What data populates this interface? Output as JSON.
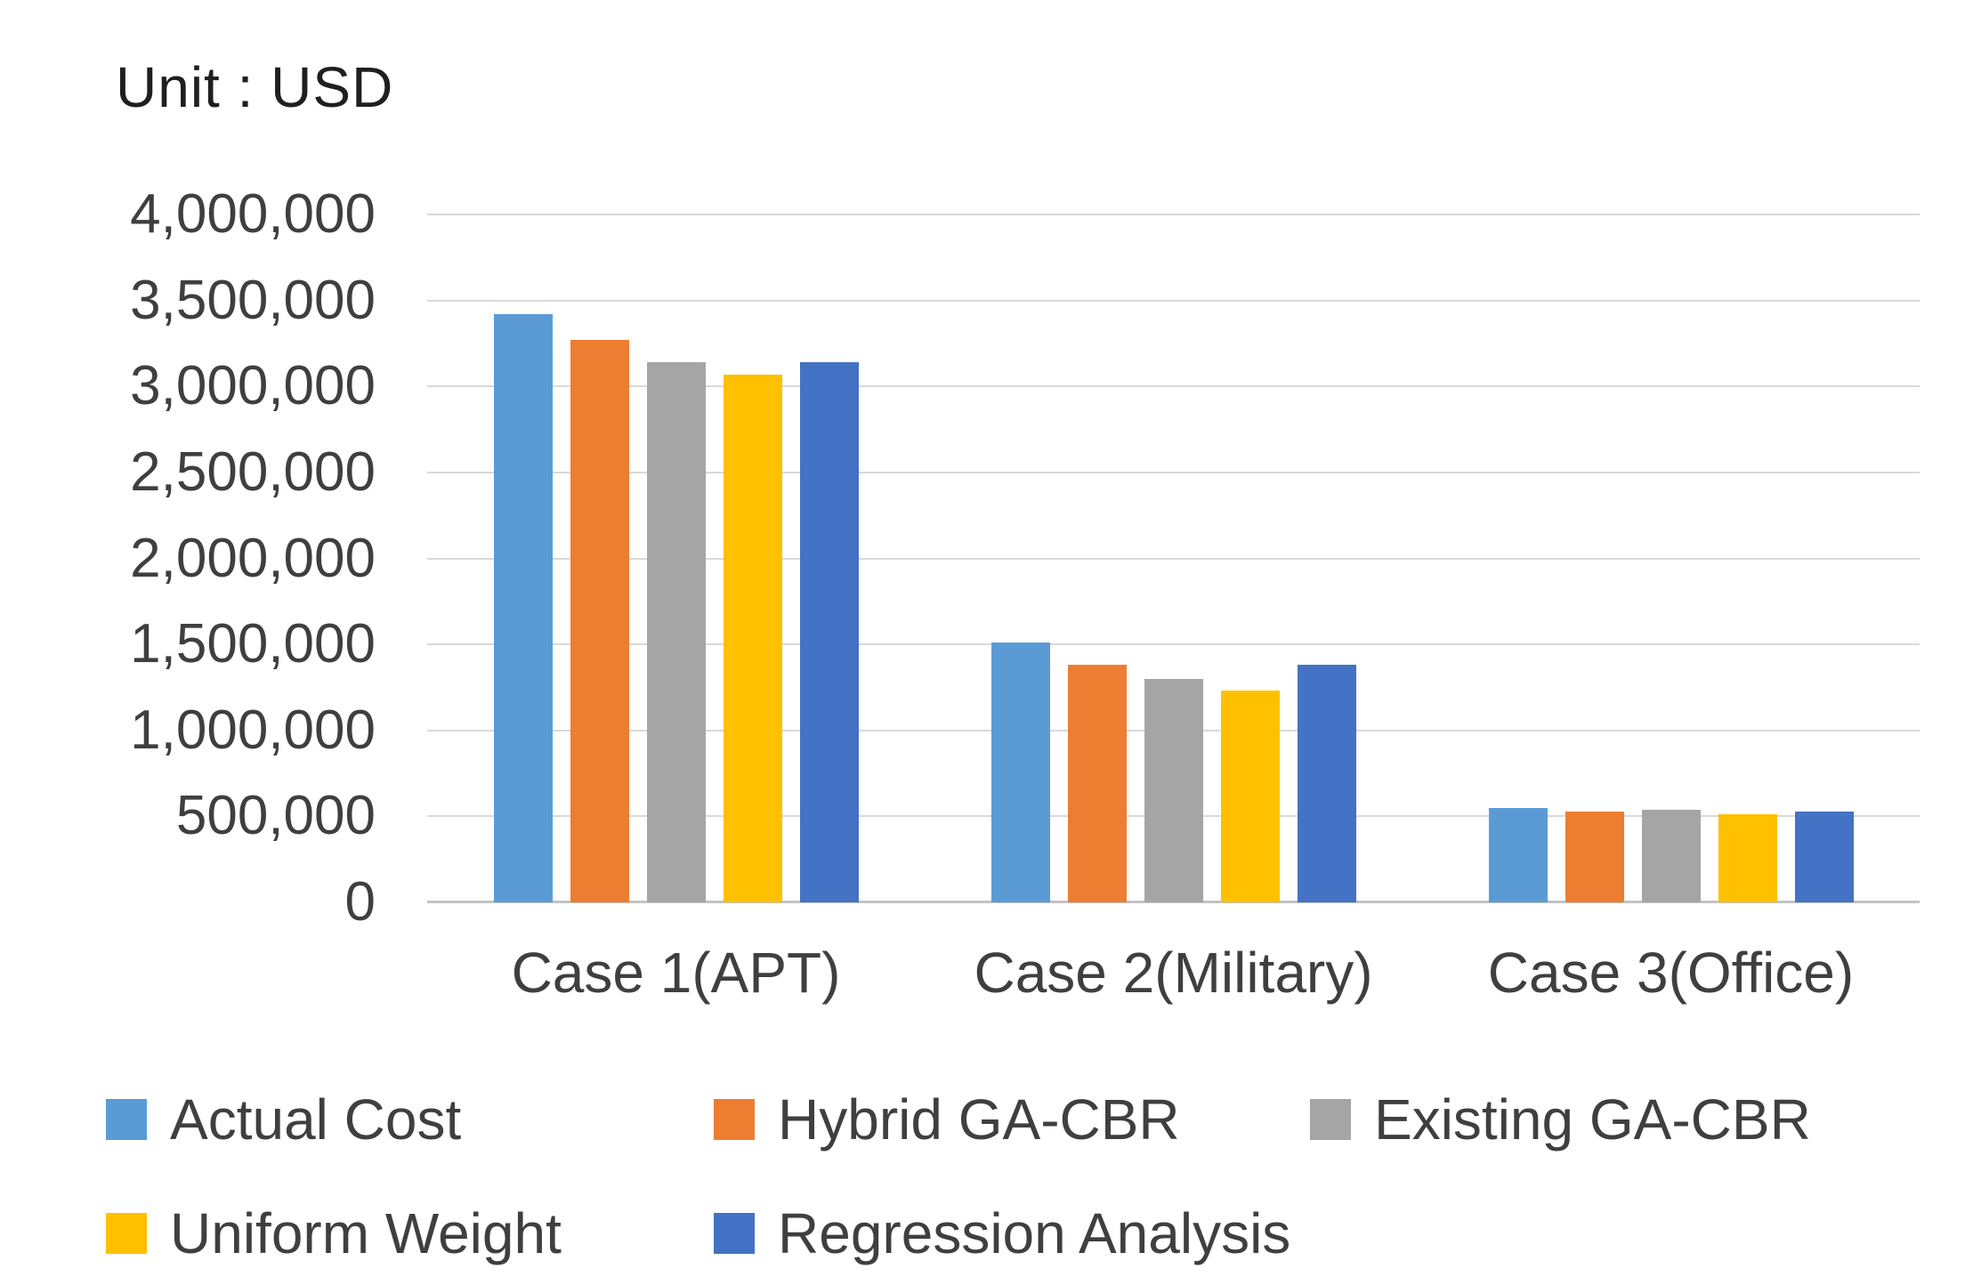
{
  "title": "Unit : USD",
  "chart_data": {
    "type": "bar",
    "title": "Unit : USD",
    "categories": [
      "Case 1(APT)",
      "Case 2(Military)",
      "Case 3(Office)"
    ],
    "series": [
      {
        "name": "Actual Cost",
        "color": "#5B9BD5",
        "values": [
          3420000,
          1510000,
          550000
        ]
      },
      {
        "name": "Hybrid GA-CBR",
        "color": "#ED7D31",
        "values": [
          3270000,
          1380000,
          530000
        ]
      },
      {
        "name": "Existing GA-CBR",
        "color": "#A5A5A5",
        "values": [
          3140000,
          1300000,
          540000
        ]
      },
      {
        "name": "Uniform Weight",
        "color": "#FFC000",
        "values": [
          3070000,
          1230000,
          510000
        ]
      },
      {
        "name": "Regression Analysis",
        "color": "#4472C4",
        "values": [
          3140000,
          1380000,
          530000
        ]
      }
    ],
    "y_axis": {
      "min": 0,
      "max": 4000000,
      "tick_interval": 500000,
      "tick_labels": [
        "0",
        "500,000",
        "1,000,000",
        "1,500,000",
        "2,000,000",
        "2,500,000",
        "3,000,000",
        "3,500,000",
        "4,000,000"
      ]
    },
    "x_axis": {
      "tick_labels": [
        "Case 1(APT)",
        "Case 2(Military)",
        "Case 3(Office)"
      ]
    },
    "grid": true,
    "legend_position": "bottom",
    "legend_rows": [
      [
        0,
        1,
        2
      ],
      [
        3,
        4
      ]
    ],
    "colors": {
      "gridline": "#d9d9d9",
      "axis_line": "#c3c3c3",
      "axis_text": "#3f3f3f",
      "title_text": "#1f1f1f"
    }
  }
}
